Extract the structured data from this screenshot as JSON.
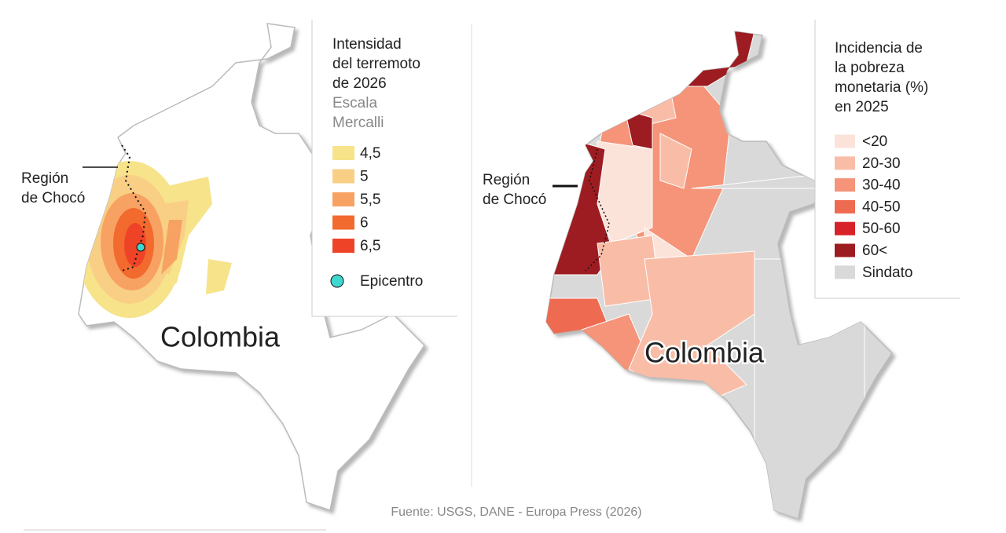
{
  "intensity_map": {
    "region_label": [
      "Región",
      "de Chocó"
    ],
    "country_label": "Colombia",
    "legend": {
      "title": [
        "Intensidad",
        "del terremoto",
        "de 2026"
      ],
      "subtitle": [
        "Escala",
        "Mercalli"
      ],
      "items": [
        {
          "label": "4,5",
          "color": "#f7e38a"
        },
        {
          "label": "5",
          "color": "#f9cf86"
        },
        {
          "label": "5,5",
          "color": "#f7a262"
        },
        {
          "label": "6",
          "color": "#f26a2e"
        },
        {
          "label": "6,5",
          "color": "#ef4327"
        }
      ],
      "epicenter": {
        "label": "Epicentro",
        "color": "#3fd8d0"
      }
    }
  },
  "poverty_map": {
    "region_label": [
      "Región",
      "de Chocó"
    ],
    "country_label": "Colombia",
    "legend": {
      "title": [
        "Incidencia de",
        "la pobreza",
        "monetaria (%)",
        "en 2025"
      ],
      "items": [
        {
          "label": "<20",
          "color": "#fbe3da"
        },
        {
          "label": "20-30",
          "color": "#f9bda7"
        },
        {
          "label": "30-40",
          "color": "#f59479"
        },
        {
          "label": "40-50",
          "color": "#ee6a51"
        },
        {
          "label": "50-60",
          "color": "#d8222a"
        },
        {
          "label": "60<",
          "color": "#9d1c22"
        },
        {
          "label": "Sindato",
          "color": "#d9d9d9"
        }
      ]
    }
  },
  "source": "Fuente: USGS, DANE - Europa Press (2026)"
}
